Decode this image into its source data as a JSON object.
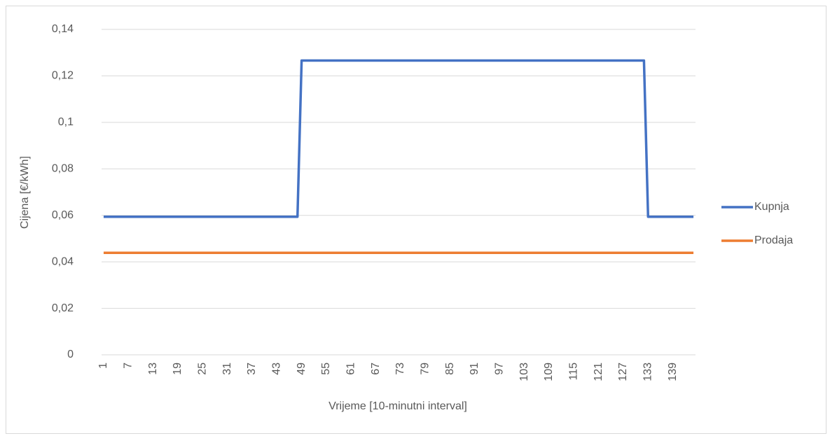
{
  "chart_data": {
    "type": "line",
    "y_label": "Cijena [€/kWh]",
    "x_label": "Vrijeme [10-minutni interval]",
    "categories": [
      1,
      null,
      null,
      null,
      null,
      null,
      7,
      null,
      null,
      null,
      null,
      null,
      13,
      null,
      null,
      null,
      null,
      null,
      19,
      null,
      null,
      null,
      null,
      null,
      25,
      null,
      null,
      null,
      null,
      null,
      31,
      null,
      null,
      null,
      null,
      null,
      37,
      null,
      null,
      null,
      null,
      null,
      43,
      null,
      null,
      null,
      null,
      null,
      49,
      null,
      null,
      null,
      null,
      null,
      55,
      null,
      null,
      null,
      null,
      null,
      61,
      null,
      null,
      null,
      null,
      null,
      67,
      null,
      null,
      null,
      null,
      null,
      73,
      null,
      null,
      null,
      null,
      null,
      79,
      null,
      null,
      null,
      null,
      null,
      85,
      null,
      null,
      null,
      null,
      null,
      91,
      null,
      null,
      null,
      null,
      null,
      97,
      null,
      null,
      null,
      null,
      null,
      103,
      null,
      null,
      null,
      null,
      null,
      109,
      null,
      null,
      null,
      null,
      null,
      115,
      null,
      null,
      null,
      null,
      null,
      121,
      null,
      null,
      null,
      null,
      null,
      127,
      null,
      null,
      null,
      null,
      null,
      133,
      null,
      null,
      null,
      null,
      null,
      139,
      null,
      null,
      null,
      null,
      null
    ],
    "series": [
      {
        "name": "Kupnja",
        "color": "#4472c4",
        "values": [
          0.0594,
          0.0594,
          0.0594,
          0.0594,
          0.0594,
          0.0594,
          0.0594,
          0.0594,
          0.0594,
          0.0594,
          0.0594,
          0.0594,
          0.0594,
          0.0594,
          0.0594,
          0.0594,
          0.0594,
          0.0594,
          0.0594,
          0.0594,
          0.0594,
          0.0594,
          0.0594,
          0.0594,
          0.0594,
          0.0594,
          0.0594,
          0.0594,
          0.0594,
          0.0594,
          0.0594,
          0.0594,
          0.0594,
          0.0594,
          0.0594,
          0.0594,
          0.0594,
          0.0594,
          0.0594,
          0.0594,
          0.0594,
          0.0594,
          0.0594,
          0.0594,
          0.0594,
          0.0594,
          0.0594,
          0.0594,
          0.1266,
          0.1266,
          0.1266,
          0.1266,
          0.1266,
          0.1266,
          0.1266,
          0.1266,
          0.1266,
          0.1266,
          0.1266,
          0.1266,
          0.1266,
          0.1266,
          0.1266,
          0.1266,
          0.1266,
          0.1266,
          0.1266,
          0.1266,
          0.1266,
          0.1266,
          0.1266,
          0.1266,
          0.1266,
          0.1266,
          0.1266,
          0.1266,
          0.1266,
          0.1266,
          0.1266,
          0.1266,
          0.1266,
          0.1266,
          0.1266,
          0.1266,
          0.1266,
          0.1266,
          0.1266,
          0.1266,
          0.1266,
          0.1266,
          0.1266,
          0.1266,
          0.1266,
          0.1266,
          0.1266,
          0.1266,
          0.1266,
          0.1266,
          0.1266,
          0.1266,
          0.1266,
          0.1266,
          0.1266,
          0.1266,
          0.1266,
          0.1266,
          0.1266,
          0.1266,
          0.1266,
          0.1266,
          0.1266,
          0.1266,
          0.1266,
          0.1266,
          0.1266,
          0.1266,
          0.1266,
          0.1266,
          0.1266,
          0.1266,
          0.1266,
          0.1266,
          0.1266,
          0.1266,
          0.1266,
          0.1266,
          0.1266,
          0.1266,
          0.1266,
          0.1266,
          0.1266,
          0.1266,
          0.0594,
          0.0594,
          0.0594,
          0.0594,
          0.0594,
          0.0594,
          0.0594,
          0.0594,
          0.0594,
          0.0594,
          0.0594,
          0.0594
        ]
      },
      {
        "name": "Prodaja",
        "color": "#ed7d31",
        "values": [
          0.0439,
          0.0439,
          0.0439,
          0.0439,
          0.0439,
          0.0439,
          0.0439,
          0.0439,
          0.0439,
          0.0439,
          0.0439,
          0.0439,
          0.0439,
          0.0439,
          0.0439,
          0.0439,
          0.0439,
          0.0439,
          0.0439,
          0.0439,
          0.0439,
          0.0439,
          0.0439,
          0.0439,
          0.0439,
          0.0439,
          0.0439,
          0.0439,
          0.0439,
          0.0439,
          0.0439,
          0.0439,
          0.0439,
          0.0439,
          0.0439,
          0.0439,
          0.0439,
          0.0439,
          0.0439,
          0.0439,
          0.0439,
          0.0439,
          0.0439,
          0.0439,
          0.0439,
          0.0439,
          0.0439,
          0.0439,
          0.0439,
          0.0439,
          0.0439,
          0.0439,
          0.0439,
          0.0439,
          0.0439,
          0.0439,
          0.0439,
          0.0439,
          0.0439,
          0.0439,
          0.0439,
          0.0439,
          0.0439,
          0.0439,
          0.0439,
          0.0439,
          0.0439,
          0.0439,
          0.0439,
          0.0439,
          0.0439,
          0.0439,
          0.0439,
          0.0439,
          0.0439,
          0.0439,
          0.0439,
          0.0439,
          0.0439,
          0.0439,
          0.0439,
          0.0439,
          0.0439,
          0.0439,
          0.0439,
          0.0439,
          0.0439,
          0.0439,
          0.0439,
          0.0439,
          0.0439,
          0.0439,
          0.0439,
          0.0439,
          0.0439,
          0.0439,
          0.0439,
          0.0439,
          0.0439,
          0.0439,
          0.0439,
          0.0439,
          0.0439,
          0.0439,
          0.0439,
          0.0439,
          0.0439,
          0.0439,
          0.0439,
          0.0439,
          0.0439,
          0.0439,
          0.0439,
          0.0439,
          0.0439,
          0.0439,
          0.0439,
          0.0439,
          0.0439,
          0.0439,
          0.0439,
          0.0439,
          0.0439,
          0.0439,
          0.0439,
          0.0439,
          0.0439,
          0.0439,
          0.0439,
          0.0439,
          0.0439,
          0.0439,
          0.0439,
          0.0439,
          0.0439,
          0.0439,
          0.0439,
          0.0439,
          0.0439,
          0.0439,
          0.0439,
          0.0439,
          0.0439,
          0.0439
        ]
      }
    ],
    "ylim": [
      0,
      0.14
    ],
    "yticks": [
      0,
      {
        "value": 0.02,
        "label": "0,02"
      },
      {
        "value": 0.04,
        "label": "0,04"
      },
      {
        "value": 0.06,
        "label": "0,06"
      },
      {
        "value": 0.08,
        "label": "0,08"
      },
      {
        "value": 0.1,
        "label": "0,1"
      },
      {
        "value": 0.12,
        "label": "0,12"
      },
      {
        "value": 0.14,
        "label": "0,14"
      }
    ],
    "grid": true,
    "legend": "right"
  }
}
